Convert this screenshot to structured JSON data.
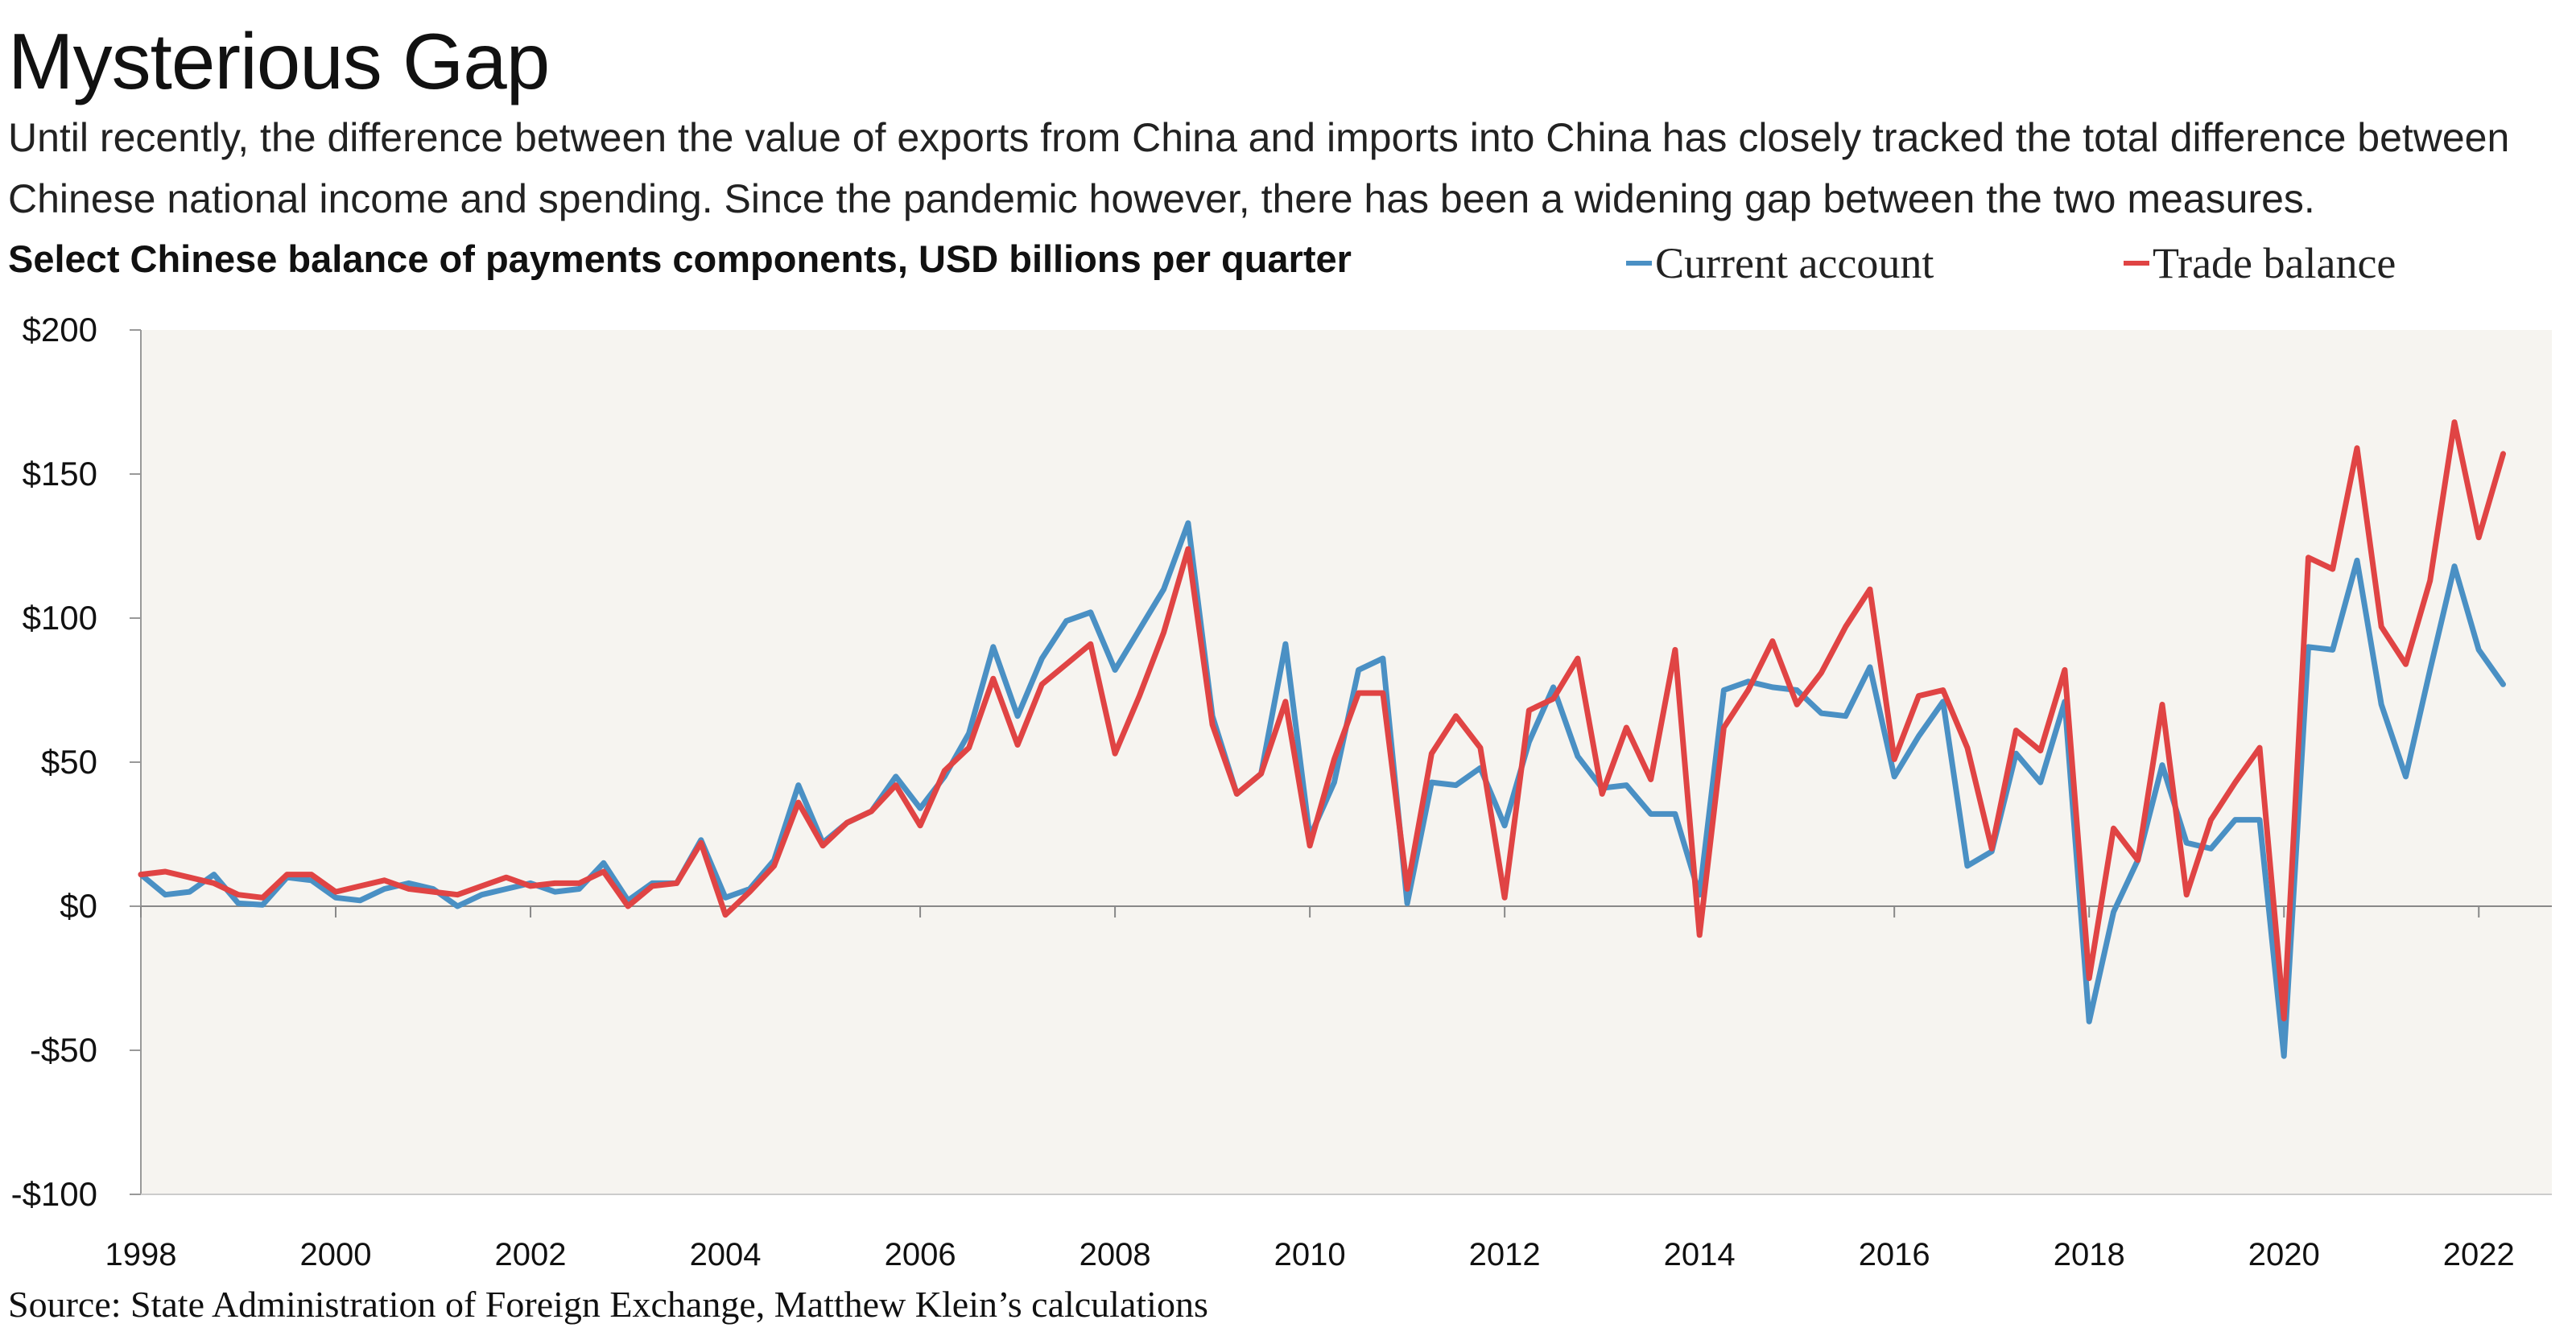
{
  "title": "Mysterious Gap",
  "subtitle": "Until recently, the difference between the value of exports from China and imports into China has closely tracked the total difference between Chinese national income and spending. Since the pandemic however, there has been a widening gap between the two measures.",
  "source": "Source: State Administration of Foreign Exchange, Matthew Klein’s calculations",
  "colors": {
    "current_account": "#4a90c4",
    "trade_balance": "#e04444",
    "plot_bg": "#f6f4f0"
  },
  "chart_data": {
    "type": "line",
    "title": "Select Chinese balance of payments components, USD billions per quarter",
    "legend_position": "top-right",
    "grid": false,
    "x_start": "1998 Q1",
    "x_frequency": "quarterly",
    "xlim": [
      1998,
      2022.75
    ],
    "ylim": [
      -100,
      200
    ],
    "y_ticks": [
      -100,
      -50,
      0,
      50,
      100,
      150,
      200
    ],
    "y_tick_labels": [
      "-$100",
      "-$50",
      "$0",
      "$50",
      "$100",
      "$150",
      "$200"
    ],
    "x_ticks": [
      1998,
      2000,
      2002,
      2004,
      2006,
      2008,
      2010,
      2012,
      2014,
      2016,
      2018,
      2020,
      2022
    ],
    "x_tick_labels": [
      "1998",
      "2000",
      "2002",
      "2004",
      "2006",
      "2008",
      "2010",
      "2012",
      "2014",
      "2016",
      "2018",
      "2020",
      "2022"
    ],
    "series": [
      {
        "name": "Current account",
        "color": "#4a90c4",
        "values": [
          11,
          4,
          5,
          11,
          1,
          0.5,
          10,
          9,
          3,
          2,
          6,
          8,
          6,
          0,
          4,
          6,
          8,
          5,
          6,
          15,
          2,
          8,
          8,
          23,
          3,
          6,
          16,
          42,
          22,
          29,
          33,
          45,
          34,
          45,
          60,
          90,
          66,
          86,
          99,
          102,
          82,
          96,
          110,
          133,
          66,
          39,
          46,
          91,
          24,
          43,
          82,
          86,
          1,
          43,
          42,
          48,
          28,
          57,
          76,
          52,
          41,
          42,
          32,
          32,
          4,
          75,
          78,
          76,
          75,
          67,
          66,
          83,
          45,
          59,
          71,
          14,
          19,
          53,
          43,
          71,
          -40,
          -2,
          16,
          49,
          22,
          20,
          30,
          30,
          -52,
          90,
          89,
          120,
          70,
          45,
          82,
          118,
          89,
          77
        ]
      },
      {
        "name": "Trade balance",
        "color": "#e04444",
        "values": [
          11,
          12,
          10,
          8,
          4,
          3,
          11,
          11,
          5,
          7,
          9,
          6,
          5,
          4,
          7,
          10,
          7,
          8,
          8,
          12,
          0,
          7,
          8,
          22,
          -3,
          5,
          14,
          36,
          21,
          29,
          33,
          42,
          28,
          47,
          55,
          79,
          56,
          77,
          84,
          91,
          53,
          73,
          95,
          124,
          63,
          39,
          46,
          71,
          21,
          51,
          74,
          74,
          6,
          53,
          66,
          55,
          3,
          68,
          72,
          86,
          39,
          62,
          44,
          89,
          -10,
          62,
          75,
          92,
          70,
          81,
          97,
          110,
          51,
          73,
          75,
          55,
          20,
          61,
          54,
          82,
          -25,
          27,
          16,
          70,
          4,
          30,
          43,
          55,
          -39,
          121,
          117,
          159,
          97,
          84,
          113,
          168,
          128,
          157
        ]
      }
    ]
  }
}
